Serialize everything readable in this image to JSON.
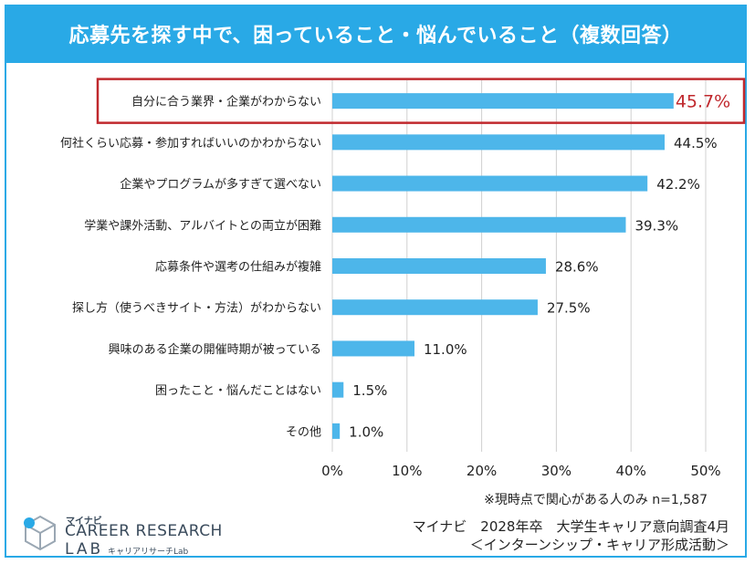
{
  "header": {
    "title": "応募先を探す中で、困っていること・悩んでいること（複数回答）"
  },
  "chart_data": {
    "type": "bar",
    "orientation": "horizontal",
    "title": "応募先を探す中で、困っていること・悩んでいること（複数回答）",
    "categories": [
      "自分に合う業界・企業がわからない",
      "何社くらい応募・参加すればいいのかわからない",
      "企業やプログラムが多すぎて選べない",
      "学業や課外活動、アルバイトとの両立が困難",
      "応募条件や選考の仕組みが複雑",
      "探し方（使うべきサイト・方法）がわからない",
      "興味のある企業の開催時期が被っている",
      "困ったこと・悩んだことはない",
      "その他"
    ],
    "values": [
      45.7,
      44.5,
      42.2,
      39.3,
      28.6,
      27.5,
      11.0,
      1.5,
      1.0
    ],
    "value_labels": [
      "45.7%",
      "44.5%",
      "42.2%",
      "39.3%",
      "28.6%",
      "27.5%",
      "11.0%",
      "1.5%",
      "1.0%"
    ],
    "xlim": [
      0,
      50
    ],
    "x_ticks": [
      0,
      10,
      20,
      30,
      40,
      50
    ],
    "x_tick_labels": [
      "0%",
      "10%",
      "20%",
      "30%",
      "40%",
      "50%"
    ],
    "grid": true,
    "highlight_index": 0,
    "bar_color": "#4db6ea",
    "highlight_color": "#c0282d",
    "grid_color": "#d0d0d0"
  },
  "footer": {
    "note": "※現時点で関心がある人のみ n=1,587",
    "source_line1": "マイナビ　2028年卒　大学生キャリア意向調査4月",
    "source_line2": "＜インターンシップ・キャリア形成活動＞"
  },
  "logo": {
    "brand": "マイナビ",
    "line1": "CAREER RESEARCH",
    "line2": "LAB",
    "sub": "キャリアリサーチLab"
  }
}
